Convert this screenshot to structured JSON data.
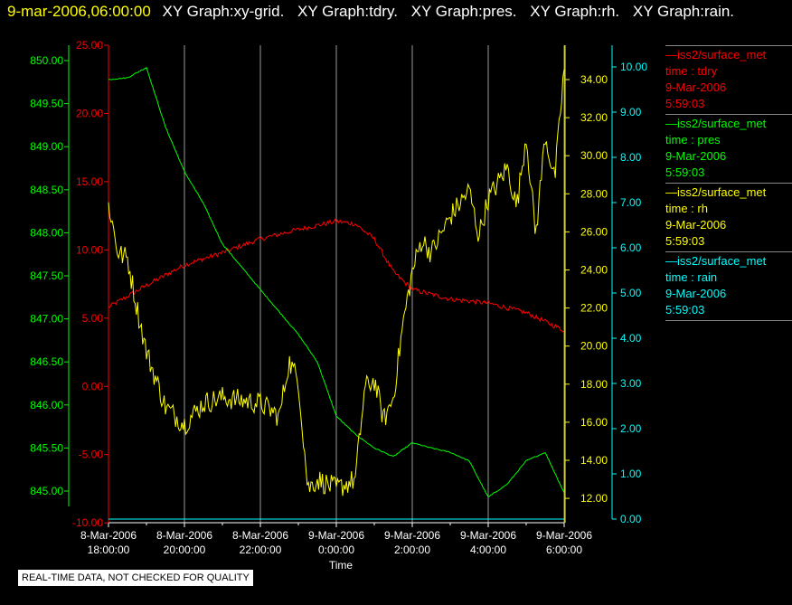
{
  "header": {
    "timestamp": "9-mar-2006,06:00:00",
    "graphs": [
      "XY Graph:xy-grid.",
      "XY Graph:tdry.",
      "XY Graph:pres.",
      "XY Graph:rh.",
      "XY Graph:rain."
    ]
  },
  "legend": [
    {
      "source": "—iss2/surface_met",
      "field": "time : tdry",
      "date": "9-Mar-2006",
      "time": "5:59:03",
      "color": "#ff0000"
    },
    {
      "source": "—iss2/surface_met",
      "field": "time : pres",
      "date": "9-Mar-2006",
      "time": "5:59:03",
      "color": "#00ff00"
    },
    {
      "source": "—iss2/surface_met",
      "field": "time : rh",
      "date": "9-Mar-2006",
      "time": "5:59:03",
      "color": "#ffff00"
    },
    {
      "source": "—iss2/surface_met",
      "field": "time : rain",
      "date": "9-Mar-2006",
      "time": "5:59:03",
      "color": "#00ffff"
    }
  ],
  "notice": "REAL-TIME DATA, NOT CHECKED FOR QUALITY",
  "chart_data": {
    "type": "line",
    "xlabel": "Time",
    "x_unit": "hours since 8-Mar-2006 18:00",
    "xlim": [
      0,
      12
    ],
    "x_ticks": [
      {
        "d": "8-Mar-2006",
        "t": "18:00:00"
      },
      {
        "d": "8-Mar-2006",
        "t": "20:00:00"
      },
      {
        "d": "8-Mar-2006",
        "t": "22:00:00"
      },
      {
        "d": "9-Mar-2006",
        "t": "0:00:00"
      },
      {
        "d": "9-Mar-2006",
        "t": "2:00:00"
      },
      {
        "d": "9-Mar-2006",
        "t": "4:00:00"
      },
      {
        "d": "9-Mar-2006",
        "t": "6:00:00"
      }
    ],
    "grid": "vertical",
    "series": [
      {
        "name": "tdry",
        "color": "#ff0000",
        "axis": "left-inner",
        "ylim": [
          -10,
          25
        ],
        "ticks": [
          "25.00",
          "20.00",
          "15.00",
          "10.00",
          "5.00",
          "0.00",
          "-5.00",
          "-10.00"
        ],
        "x": [
          0,
          1,
          2,
          3,
          4,
          5,
          6,
          6.5,
          7,
          7.5,
          8,
          9,
          10,
          11,
          12
        ],
        "y": [
          5.8,
          7.4,
          8.9,
          9.8,
          10.8,
          11.5,
          12.1,
          11.9,
          10.8,
          8.4,
          7.1,
          6.4,
          6.1,
          5.4,
          4.1
        ]
      },
      {
        "name": "pres",
        "color": "#00ff00",
        "axis": "left-outer",
        "ylim": [
          844.82,
          850.18
        ],
        "ticks": [
          "850.00",
          "849.50",
          "849.00",
          "848.50",
          "848.00",
          "847.50",
          "847.00",
          "846.50",
          "846.00",
          "845.50",
          "845.00"
        ],
        "x": [
          0,
          0.5,
          1,
          1.5,
          2,
          2.5,
          3,
          4,
          5,
          5.5,
          6,
          6.5,
          7,
          7.5,
          8,
          8.5,
          9,
          9.5,
          10,
          10.5,
          11,
          11.5,
          12
        ],
        "y": [
          849.78,
          849.8,
          849.92,
          849.23,
          848.71,
          848.34,
          847.87,
          847.34,
          846.82,
          846.5,
          845.87,
          845.66,
          845.5,
          845.4,
          845.56,
          845.5,
          845.45,
          845.35,
          844.93,
          845.08,
          845.35,
          845.45,
          844.98
        ]
      },
      {
        "name": "rh",
        "color": "#ffff00",
        "axis": "right-inner",
        "ylim": [
          10.9,
          36
        ],
        "ticks": [
          "34.00",
          "32.00",
          "30.00",
          "28.00",
          "26.00",
          "24.00",
          "22.00",
          "20.00",
          "18.00",
          "16.00",
          "14.00",
          "12.00"
        ],
        "x": [
          0,
          0.25,
          0.5,
          0.75,
          1,
          1.5,
          2,
          2.5,
          3,
          4,
          4.5,
          4.75,
          5,
          5.25,
          5.5,
          6,
          6.5,
          6.75,
          7,
          7.25,
          7.5,
          7.75,
          8,
          8.25,
          8.5,
          9,
          9.5,
          9.75,
          10,
          10.5,
          10.75,
          11,
          11.25,
          11.5,
          11.75,
          12
        ],
        "y": [
          27.5,
          24.9,
          24.6,
          22.0,
          19.7,
          16.8,
          15.9,
          17.0,
          17.3,
          17.0,
          16.3,
          19.2,
          18.2,
          12.5,
          13.0,
          12.5,
          13.0,
          17.8,
          18.2,
          16.1,
          17.3,
          21.1,
          23.9,
          25.6,
          24.9,
          26.8,
          28.2,
          25.8,
          27.7,
          29.4,
          27.3,
          31.1,
          25.8,
          31.1,
          28.7,
          34.6
        ]
      },
      {
        "name": "rain",
        "color": "#00ffff",
        "axis": "right-outer",
        "ylim": [
          0,
          10
        ],
        "ticks": [
          "10.00",
          "9.00",
          "8.00",
          "7.00",
          "6.00",
          "5.00",
          "4.00",
          "3.00",
          "2.00",
          "1.00",
          "0.00"
        ],
        "x": [
          0,
          12
        ],
        "y": [
          0,
          0
        ]
      }
    ]
  }
}
